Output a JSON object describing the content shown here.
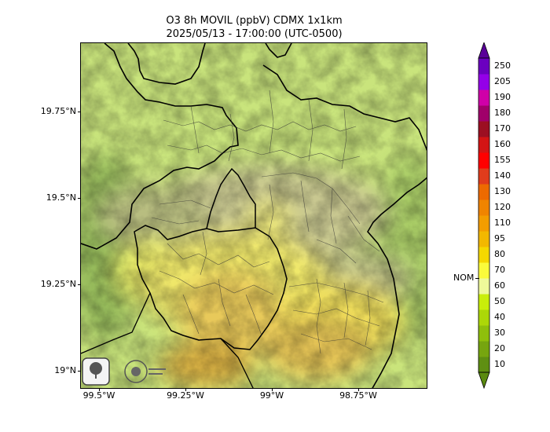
{
  "title": {
    "line1": "O3 8h MOVIL (ppbV) CDMX 1x1km",
    "line2": "2025/05/13 - 17:00:00 (UTC-0500)"
  },
  "map": {
    "x_ticks": [
      "99.5°W",
      "99.25°W",
      "99°W",
      "98.75°W"
    ],
    "y_ticks": [
      "19.75°N",
      "19.5°N",
      "19.25°N",
      "19°N"
    ],
    "logos": [
      {
        "name": "sedema-logo",
        "text": "SEDEMA"
      },
      {
        "name": "cdmx-logo",
        "text": "CIUDAD DE MÉXICO"
      }
    ]
  },
  "colorbar": {
    "levels": [
      "10",
      "20",
      "30",
      "40",
      "50",
      "60",
      "70",
      "80",
      "95",
      "110",
      "120",
      "130",
      "140",
      "155",
      "160",
      "170",
      "180",
      "190",
      "205",
      "250"
    ],
    "colors": [
      "#5f8f12",
      "#76a50f",
      "#8fbf0c",
      "#acd708",
      "#c9ee0a",
      "#eef99a",
      "#fafb3b",
      "#f5d800",
      "#f2b800",
      "#f39d00",
      "#f08400",
      "#ed6a00",
      "#e03c1c",
      "#ff0000",
      "#d31414",
      "#9c0f22",
      "#a0006a",
      "#cf00a8",
      "#9400e8",
      "#6b00c0"
    ],
    "bottom_arrow_color": "#5a8a10",
    "top_arrow_color": "#5a0099",
    "standard_label": "NOM"
  }
}
